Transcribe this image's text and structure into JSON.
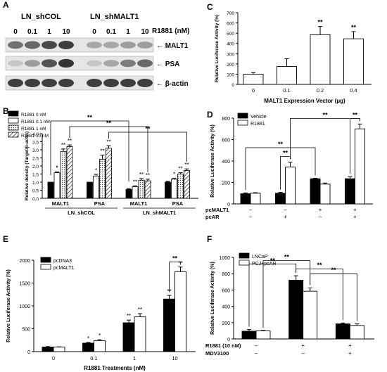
{
  "panels": {
    "A": {
      "label": "A",
      "groups": [
        "LN_shCOL",
        "LN_shMALT1"
      ],
      "treatment_label": "R1881 (nM)",
      "doses": [
        "0",
        "0.1",
        "1",
        "10",
        "0",
        "0.1",
        "1",
        "10"
      ],
      "blots": [
        "MALT1",
        "PSA",
        "β-actin"
      ]
    },
    "B": {
      "label": "B"
    },
    "C": {
      "label": "C"
    },
    "D": {
      "label": "D"
    },
    "E": {
      "label": "E"
    },
    "F": {
      "label": "F"
    }
  },
  "chart_data": [
    {
      "id": "B",
      "type": "bar",
      "ylabel": "Relative density (Target/β-actin)",
      "ylim": [
        0,
        4.0
      ],
      "yticks": [
        "0.0",
        "0.5",
        "1.0",
        "1.5",
        "2.0",
        "2.5",
        "3.0",
        "3.5",
        "4.0"
      ],
      "categories": [
        "MALT1",
        "PSA",
        "MALT1",
        "PSA"
      ],
      "group_labels": [
        "LN_shCOL",
        "LN_shMALT1"
      ],
      "legend_position": "top-left",
      "series": [
        {
          "name": "R1881 0 nM",
          "values": [
            1.0,
            1.0,
            0.55,
            1.0
          ],
          "errors": [
            0.0,
            0.0,
            0.05,
            0.05
          ],
          "fill": "#000000"
        },
        {
          "name": "R1881 0.1 nM",
          "values": [
            1.58,
            1.38,
            0.72,
            1.18
          ],
          "errors": [
            0.05,
            0.1,
            0.05,
            0.05
          ],
          "fill": "#ffffff"
        },
        {
          "name": "R1881 1 nM",
          "values": [
            2.9,
            2.42,
            1.12,
            1.5
          ],
          "errors": [
            0.15,
            0.25,
            0.1,
            0.08
          ],
          "fill": "#ffffff",
          "pattern": "dots"
        },
        {
          "name": "R1881 10 nM",
          "values": [
            3.2,
            3.1,
            1.08,
            1.72
          ],
          "errors": [
            0.1,
            0.15,
            0.1,
            0.1
          ],
          "fill": "#ffffff",
          "pattern": "hatch"
        }
      ],
      "stars": [
        [
          0,
          1,
          "*"
        ],
        [
          0,
          1,
          "*"
        ],
        [
          0,
          2,
          "**"
        ],
        [
          0,
          3,
          "**"
        ],
        [
          1,
          1,
          "*"
        ],
        [
          1,
          2,
          "**"
        ],
        [
          1,
          3,
          "**"
        ],
        [
          2,
          1,
          "**"
        ],
        [
          2,
          2,
          "**"
        ],
        [
          2,
          3,
          "**"
        ],
        [
          3,
          1,
          "*"
        ],
        [
          3,
          2,
          "**"
        ],
        [
          3,
          3,
          "**"
        ]
      ],
      "brackets": [
        {
          "from": [
            0,
            0
          ],
          "to": [
            2,
            0
          ],
          "label": "**"
        },
        {
          "from": [
            0,
            3
          ],
          "to": [
            2,
            3
          ],
          "label": "**"
        },
        {
          "from": [
            1,
            3
          ],
          "to": [
            3,
            3
          ],
          "label": "**"
        }
      ]
    },
    {
      "id": "C",
      "type": "bar",
      "xlabel": "MALT1 Expression Vector (μg)",
      "ylabel": "Relative Luciferase Activity (%)",
      "ylim": [
        0,
        700
      ],
      "yticks": [
        "0",
        "100",
        "200",
        "300",
        "400",
        "500",
        "600",
        "700"
      ],
      "categories": [
        "0",
        "0.1",
        "0.2",
        "0.4"
      ],
      "values": [
        100,
        175,
        485,
        445
      ],
      "errors": [
        15,
        75,
        80,
        70
      ],
      "stars": [
        "",
        "",
        "**",
        "**"
      ]
    },
    {
      "id": "D",
      "type": "bar",
      "ylabel": "Relative Luciferase Activity (%)",
      "ylim": [
        0,
        800
      ],
      "yticks": [
        "0",
        "200",
        "400",
        "600",
        "800"
      ],
      "legend_position": "top-left",
      "series": [
        {
          "name": "Vehicle",
          "values": [
            95,
            100,
            235,
            235
          ],
          "errors": [
            8,
            8,
            5,
            20
          ],
          "fill": "#000000"
        },
        {
          "name": "R1881",
          "values": [
            100,
            345,
            185,
            700
          ],
          "errors": [
            5,
            45,
            10,
            45
          ],
          "fill": "#ffffff"
        }
      ],
      "row_labels": [
        "pcMALT1",
        "pcAR"
      ],
      "rows": [
        [
          "–",
          "–",
          "+",
          "+"
        ],
        [
          "–",
          "+",
          "–",
          "+"
        ]
      ],
      "brackets": [
        {
          "from": [
            1,
            0
          ],
          "to": [
            1,
            1
          ],
          "label": "**"
        },
        {
          "from": [
            3,
            0
          ],
          "to": [
            3,
            1
          ],
          "label": "**"
        },
        {
          "from": [
            0,
            0
          ],
          "to": [
            2,
            0
          ],
          "label": "**"
        },
        {
          "from": [
            1,
            1
          ],
          "to": [
            3,
            1
          ],
          "label": "**"
        }
      ]
    },
    {
      "id": "E",
      "type": "bar",
      "xlabel": "R1881 Treatments (nM)",
      "ylabel": "Relative Luciferase Activity (%)",
      "ylim": [
        0,
        2000
      ],
      "yticks": [
        "0",
        "500",
        "1000",
        "1500",
        "2000"
      ],
      "categories": [
        "0",
        "0.1",
        "1",
        "10"
      ],
      "legend_position": "top-left",
      "series": [
        {
          "name": "pcDNA3",
          "values": [
            100,
            185,
            630,
            1150
          ],
          "errors": [
            10,
            15,
            60,
            80
          ],
          "fill": "#000000"
        },
        {
          "name": "pcMALT1",
          "values": [
            100,
            240,
            760,
            1750
          ],
          "errors": [
            5,
            20,
            70,
            100
          ],
          "fill": "#ffffff"
        }
      ],
      "stars": [
        [
          "",
          ""
        ],
        [
          "*",
          "*"
        ],
        [
          "**",
          "**"
        ],
        [
          "**",
          "**"
        ]
      ],
      "brackets": [
        {
          "from": [
            3,
            0
          ],
          "to": [
            3,
            1
          ],
          "label": "**"
        }
      ]
    },
    {
      "id": "F",
      "type": "bar",
      "ylabel": "Relative Luciferase Activity (%)",
      "ylim": [
        0,
        1000
      ],
      "yticks": [
        "0",
        "200",
        "400",
        "600",
        "800",
        "1000"
      ],
      "legend_position": "top-left",
      "series": [
        {
          "name": "LNCaP",
          "values": [
            95,
            720,
            185
          ],
          "errors": [
            20,
            55,
            10
          ],
          "fill": "#000000"
        },
        {
          "name": "PCJ+pcAR",
          "values": [
            100,
            585,
            165
          ],
          "errors": [
            5,
            40,
            20
          ],
          "fill": "#ffffff"
        }
      ],
      "row_labels": [
        "R1881 (10 nM)",
        "MDV3100"
      ],
      "rows": [
        [
          "–",
          "+",
          "+"
        ],
        [
          "–",
          "–",
          "+"
        ]
      ],
      "brackets": [
        {
          "from": [
            0,
            0
          ],
          "to": [
            1,
            0
          ],
          "label": "**"
        },
        {
          "from": [
            0,
            1
          ],
          "to": [
            1,
            1
          ],
          "label": "**"
        },
        {
          "from": [
            1,
            0
          ],
          "to": [
            2,
            0
          ],
          "label": "**"
        },
        {
          "from": [
            1,
            1
          ],
          "to": [
            2,
            1
          ],
          "label": "**"
        }
      ]
    }
  ]
}
